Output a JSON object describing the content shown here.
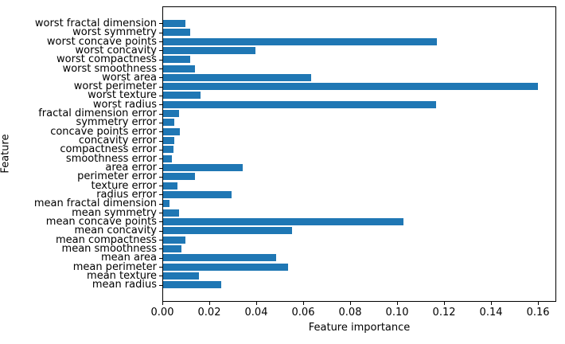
{
  "figure": {
    "background": "#ffffff",
    "bar_color": "#1f77b4",
    "axis_color": "#000000",
    "text_color": "#000000"
  },
  "chart_data": {
    "type": "bar",
    "orientation": "horizontal",
    "title": "",
    "xlabel": "Feature importance",
    "ylabel": "Feature",
    "grid": false,
    "legend_position": "none",
    "xlim": [
      0,
      0.1671
    ],
    "xtick_values": [
      0.0,
      0.02,
      0.04,
      0.06,
      0.08,
      0.1,
      0.12,
      0.14,
      0.16
    ],
    "xtick_labels": [
      "0.00",
      "0.02",
      "0.04",
      "0.06",
      "0.08",
      "0.10",
      "0.12",
      "0.14",
      "0.16"
    ],
    "categories_top_to_bottom": [
      "worst fractal dimension",
      "worst symmetry",
      "worst concave points",
      "worst concavity",
      "worst compactness",
      "worst smoothness",
      "worst area",
      "worst perimeter",
      "worst texture",
      "worst radius",
      "fractal dimension error",
      "symmetry error",
      "concave points error",
      "concavity error",
      "compactness error",
      "smoothness error",
      "area error",
      "perimeter error",
      "texture error",
      "radius error",
      "mean fractal dimension",
      "mean symmetry",
      "mean concave points",
      "mean concavity",
      "mean compactness",
      "mean smoothness",
      "mean area",
      "mean perimeter",
      "mean texture",
      "mean radius"
    ],
    "values_top_to_bottom": [
      0.0094,
      0.0114,
      0.1167,
      0.0392,
      0.0114,
      0.0134,
      0.0631,
      0.1598,
      0.0158,
      0.1162,
      0.0067,
      0.0048,
      0.007,
      0.0046,
      0.0045,
      0.0037,
      0.034,
      0.0135,
      0.006,
      0.0291,
      0.0028,
      0.0069,
      0.1025,
      0.055,
      0.0094,
      0.0077,
      0.0482,
      0.0533,
      0.0154,
      0.0247
    ]
  }
}
